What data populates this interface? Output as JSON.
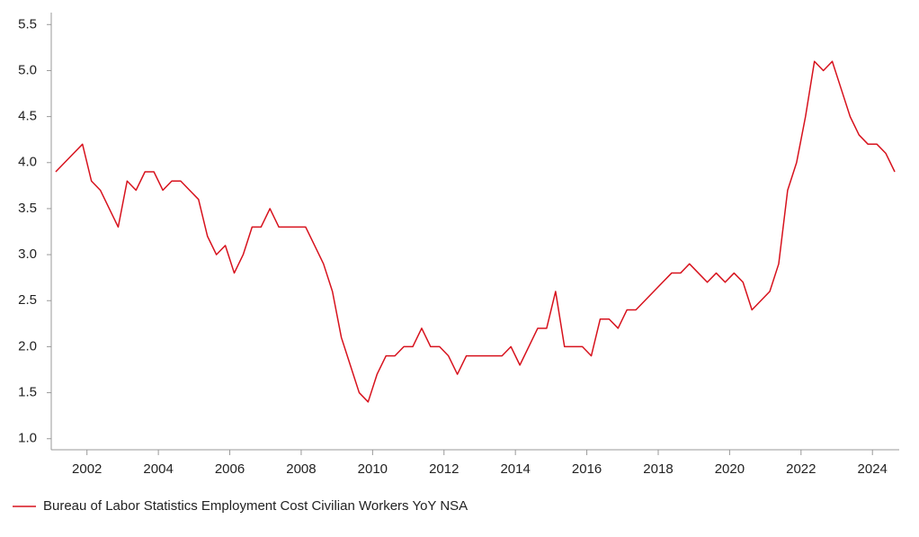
{
  "chart_data": {
    "type": "line",
    "x": [
      2001.125,
      2001.375,
      2001.625,
      2001.875,
      2002.125,
      2002.375,
      2002.625,
      2002.875,
      2003.125,
      2003.375,
      2003.625,
      2003.875,
      2004.125,
      2004.375,
      2004.625,
      2004.875,
      2005.125,
      2005.375,
      2005.625,
      2005.875,
      2006.125,
      2006.375,
      2006.625,
      2006.875,
      2007.125,
      2007.375,
      2007.625,
      2007.875,
      2008.125,
      2008.375,
      2008.625,
      2008.875,
      2009.125,
      2009.375,
      2009.625,
      2009.875,
      2010.125,
      2010.375,
      2010.625,
      2010.875,
      2011.125,
      2011.375,
      2011.625,
      2011.875,
      2012.125,
      2012.375,
      2012.625,
      2012.875,
      2013.125,
      2013.375,
      2013.625,
      2013.875,
      2014.125,
      2014.375,
      2014.625,
      2014.875,
      2015.125,
      2015.375,
      2015.625,
      2015.875,
      2016.125,
      2016.375,
      2016.625,
      2016.875,
      2017.125,
      2017.375,
      2017.625,
      2017.875,
      2018.125,
      2018.375,
      2018.625,
      2018.875,
      2019.125,
      2019.375,
      2019.625,
      2019.875,
      2020.125,
      2020.375,
      2020.625,
      2020.875,
      2021.125,
      2021.375,
      2021.625,
      2021.875,
      2022.125,
      2022.375,
      2022.625,
      2022.875,
      2023.125,
      2023.375,
      2023.625,
      2023.875,
      2024.125,
      2024.375,
      2024.625
    ],
    "series": [
      {
        "name": "Bureau of Labor Statistics Employment Cost Civilian Workers YoY NSA",
        "color": "#d7121d",
        "values": [
          3.9,
          4.0,
          4.1,
          4.2,
          3.8,
          3.7,
          3.5,
          3.3,
          3.8,
          3.7,
          3.9,
          3.9,
          3.7,
          3.8,
          3.8,
          3.7,
          3.6,
          3.2,
          3.0,
          3.1,
          2.8,
          3.0,
          3.3,
          3.3,
          3.5,
          3.3,
          3.3,
          3.3,
          3.3,
          3.1,
          2.9,
          2.6,
          2.1,
          1.8,
          1.5,
          1.4,
          1.7,
          1.9,
          1.9,
          2.0,
          2.0,
          2.2,
          2.0,
          2.0,
          1.9,
          1.7,
          1.9,
          1.9,
          1.9,
          1.9,
          1.9,
          2.0,
          1.8,
          2.0,
          2.2,
          2.2,
          2.6,
          2.0,
          2.0,
          2.0,
          1.9,
          2.3,
          2.3,
          2.2,
          2.4,
          2.4,
          2.5,
          2.6,
          2.7,
          2.8,
          2.8,
          2.9,
          2.8,
          2.7,
          2.8,
          2.7,
          2.8,
          2.7,
          2.4,
          2.5,
          2.6,
          2.9,
          3.7,
          4.0,
          4.5,
          5.1,
          5.0,
          5.1,
          4.8,
          4.5,
          4.3,
          4.2,
          4.2,
          4.1,
          3.9
        ]
      }
    ],
    "xlim": [
      2001,
      2024.75
    ],
    "xticks": [
      2002,
      2004,
      2006,
      2008,
      2010,
      2012,
      2014,
      2016,
      2018,
      2020,
      2022,
      2024
    ],
    "ylim": [
      0.88,
      5.63
    ],
    "yticks": [
      {
        "value": 1,
        "label": "1.0"
      },
      1.5,
      {
        "value": 2,
        "label": "2.0"
      },
      2.5,
      {
        "value": 3,
        "label": "3.0"
      },
      3.5,
      {
        "value": 4,
        "label": "4.0"
      },
      4.5,
      {
        "value": 5,
        "label": "5.0"
      },
      5.5
    ],
    "legend": "bottom-left"
  }
}
